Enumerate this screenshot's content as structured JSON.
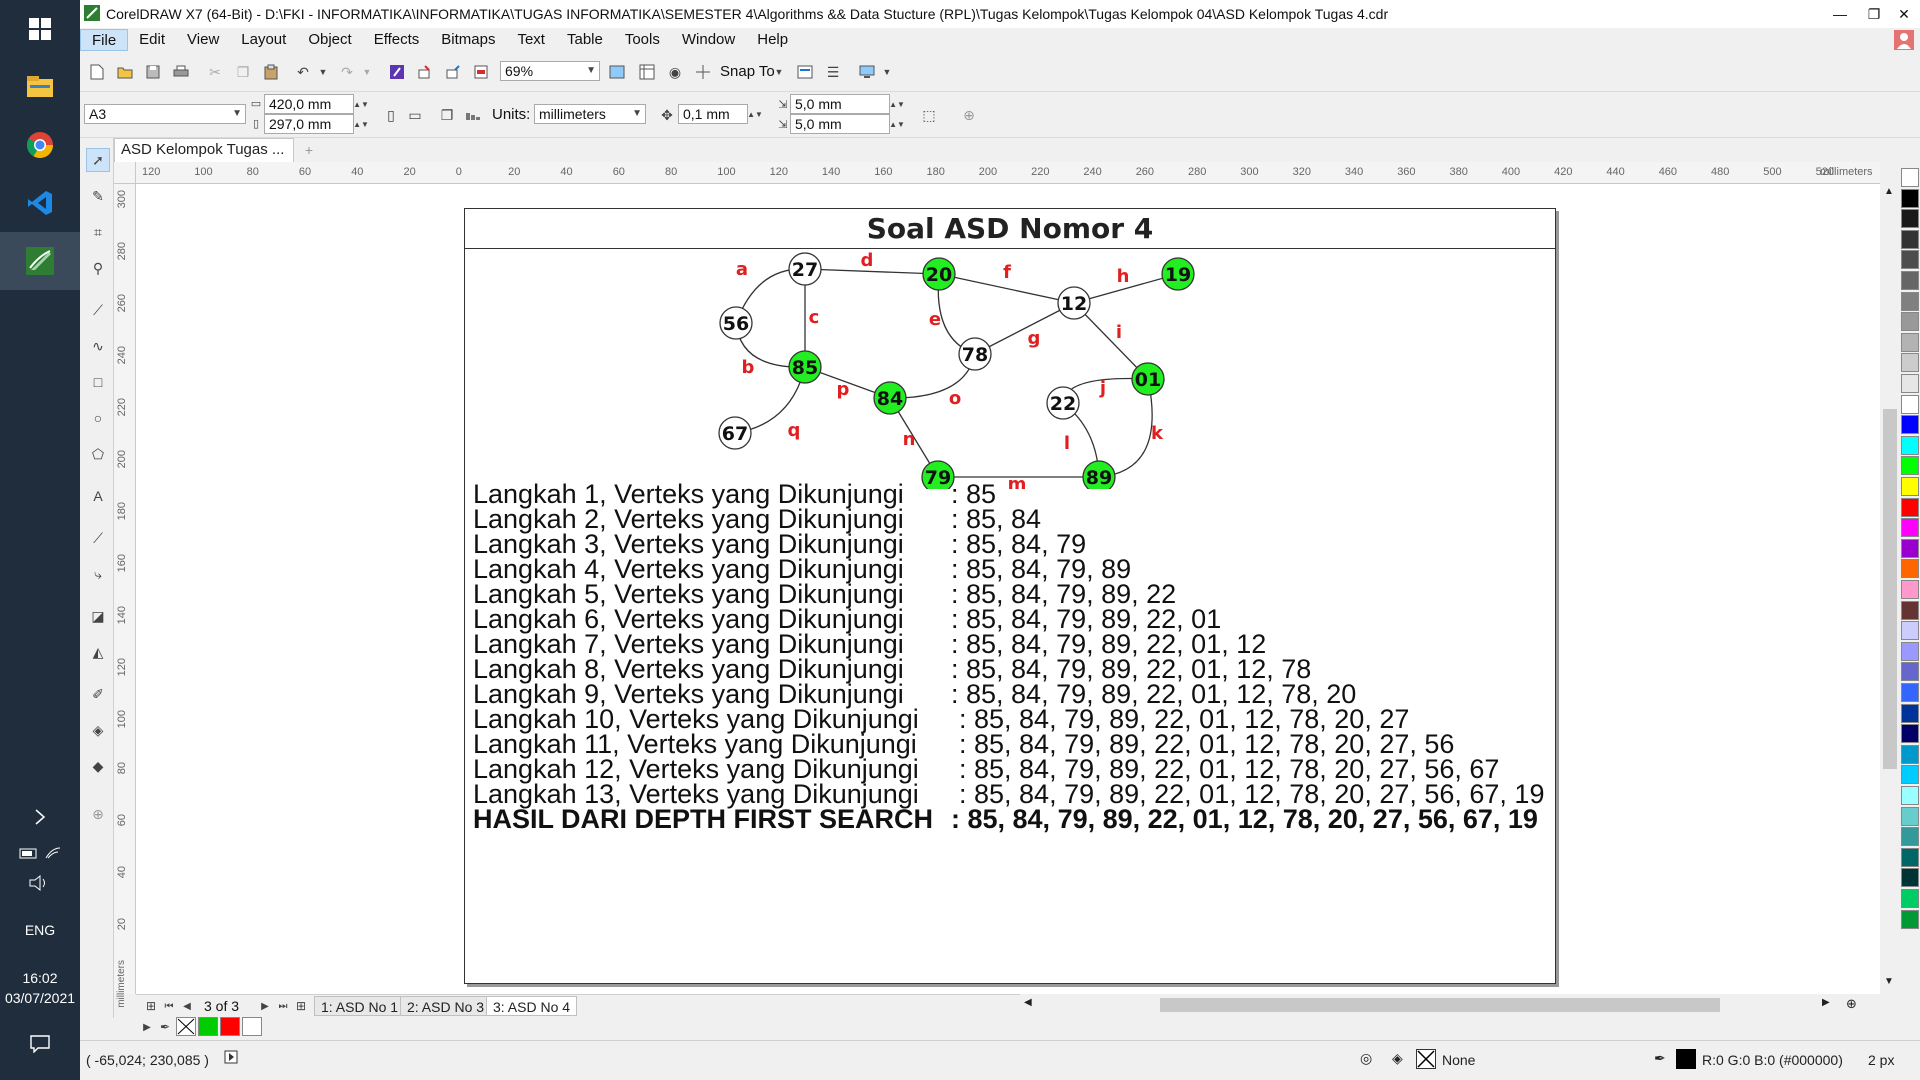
{
  "taskbar": {
    "language": "ENG",
    "time": "16:02",
    "date": "03/07/2021"
  },
  "window": {
    "title": "CorelDRAW X7 (64-Bit) - D:\\FKI - INFORMATIKA\\INFORMATIKA\\TUGAS INFORMATIKA\\SEMESTER 4\\Algorithms && Data Stucture (RPL)\\Tugas Kelompok\\Tugas Kelompok 04\\ASD Kelompok Tugas 4.cdr"
  },
  "menu": [
    "File",
    "Edit",
    "View",
    "Layout",
    "Object",
    "Effects",
    "Bitmaps",
    "Text",
    "Table",
    "Tools",
    "Window",
    "Help"
  ],
  "standard_toolbar": {
    "zoom": "69%",
    "snap_to": "Snap To"
  },
  "property_bar": {
    "paper_size": "A3",
    "width": "420,0 mm",
    "height": "297,0 mm",
    "units_label": "Units:",
    "units": "millimeters",
    "nudge": "0,1 mm",
    "dup_x": "5,0 mm",
    "dup_y": "5,0 mm"
  },
  "doc_tab": "ASD Kelompok Tugas ...",
  "ruler": {
    "h_labels": [
      "120",
      "100",
      "80",
      "60",
      "40",
      "20",
      "0",
      "20",
      "40",
      "60",
      "80",
      "100",
      "120",
      "140",
      "160",
      "180",
      "200",
      "220",
      "240",
      "260",
      "280",
      "300",
      "320",
      "340",
      "360",
      "380",
      "400",
      "420",
      "440",
      "460",
      "480",
      "500",
      "520"
    ],
    "h_unit": "millimeters",
    "v_labels": [
      "300",
      "280",
      "260",
      "240",
      "220",
      "200",
      "180",
      "160",
      "140",
      "120",
      "100",
      "80",
      "60",
      "40",
      "20"
    ],
    "v_unit": "millimeters"
  },
  "page": {
    "title": "Soal ASD Nomor 4",
    "nodes": [
      {
        "id": "27",
        "color": "#ffffff"
      },
      {
        "id": "20",
        "color": "#22ee22"
      },
      {
        "id": "19",
        "color": "#22ee22"
      },
      {
        "id": "56",
        "color": "#ffffff"
      },
      {
        "id": "12",
        "color": "#ffffff"
      },
      {
        "id": "78",
        "color": "#ffffff"
      },
      {
        "id": "85",
        "color": "#22ee22"
      },
      {
        "id": "84",
        "color": "#22ee22"
      },
      {
        "id": "01",
        "color": "#22ee22"
      },
      {
        "id": "22",
        "color": "#ffffff"
      },
      {
        "id": "67",
        "color": "#ffffff"
      },
      {
        "id": "79",
        "color": "#22ee22"
      },
      {
        "id": "89",
        "color": "#22ee22"
      }
    ],
    "edge_labels": [
      "a",
      "b",
      "c",
      "d",
      "e",
      "f",
      "g",
      "h",
      "i",
      "j",
      "k",
      "l",
      "m",
      "n",
      "o",
      "p",
      "q"
    ],
    "steps": [
      {
        "label": "Langkah 1, Verteks yang Dikunjungi",
        "value": ": 85"
      },
      {
        "label": "Langkah 2, Verteks yang Dikunjungi",
        "value": ": 85, 84"
      },
      {
        "label": "Langkah 3, Verteks yang Dikunjungi",
        "value": ": 85, 84, 79"
      },
      {
        "label": "Langkah 4, Verteks yang Dikunjungi",
        "value": ": 85, 84, 79, 89"
      },
      {
        "label": "Langkah 5, Verteks yang Dikunjungi",
        "value": ": 85, 84, 79, 89, 22"
      },
      {
        "label": "Langkah 6, Verteks yang Dikunjungi",
        "value": ": 85, 84, 79, 89, 22, 01"
      },
      {
        "label": "Langkah 7, Verteks yang Dikunjungi",
        "value": ": 85, 84, 79, 89, 22, 01, 12"
      },
      {
        "label": "Langkah 8, Verteks yang Dikunjungi",
        "value": ": 85, 84, 79, 89, 22, 01, 12, 78"
      },
      {
        "label": "Langkah 9, Verteks yang Dikunjungi",
        "value": ": 85, 84, 79, 89, 22, 01, 12, 78, 20"
      },
      {
        "label": "Langkah 10, Verteks yang Dikunjungi",
        "value": ": 85, 84, 79, 89, 22, 01, 12, 78, 20, 27"
      },
      {
        "label": "Langkah 11, Verteks yang Dikunjungi",
        "value": ": 85, 84, 79, 89, 22, 01, 12, 78, 20, 27, 56"
      },
      {
        "label": "Langkah 12, Verteks yang Dikunjungi",
        "value": ": 85, 84, 79, 89, 22, 01, 12, 78, 20, 27, 56, 67"
      },
      {
        "label": "Langkah 13, Verteks yang Dikunjungi",
        "value": ": 85, 84, 79, 89, 22, 01, 12, 78, 20, 27, 56, 67, 19"
      }
    ],
    "result": {
      "label": "HASIL DARI DEPTH FIRST SEARCH",
      "value": ": 85, 84, 79, 89, 22, 01, 12, 78, 20, 27, 56, 67, 19"
    }
  },
  "page_nav": {
    "counter": "3 of 3",
    "tabs": [
      "1: ASD No 1",
      "2: ASD No 3",
      "3: ASD No 4"
    ]
  },
  "palette_colors": [
    "#ffffff",
    "#000000",
    "#1a1a1a",
    "#333333",
    "#4d4d4d",
    "#666666",
    "#808080",
    "#999999",
    "#b3b3b3",
    "#cccccc",
    "#e6e6e6",
    "#ffffff",
    "#0000ff",
    "#00ffff",
    "#00ff00",
    "#ffff00",
    "#ff0000",
    "#ff00ff",
    "#9900cc",
    "#ff6600",
    "#ff99cc",
    "#663333",
    "#ccccff",
    "#9999ff",
    "#6666cc",
    "#3366ff",
    "#003399",
    "#000066",
    "#0099cc",
    "#00ccff",
    "#99ffff",
    "#66cccc",
    "#339999",
    "#006666",
    "#003333",
    "#00cc66",
    "#009933"
  ],
  "doc_palette": [
    "#00cc00",
    "#ff0000",
    "#ffffff"
  ],
  "status": {
    "coords": "( -65,024; 230,085 )",
    "fill": "None",
    "outline": "R:0 G:0 B:0 (#000000)",
    "outline_width": "2 px"
  }
}
